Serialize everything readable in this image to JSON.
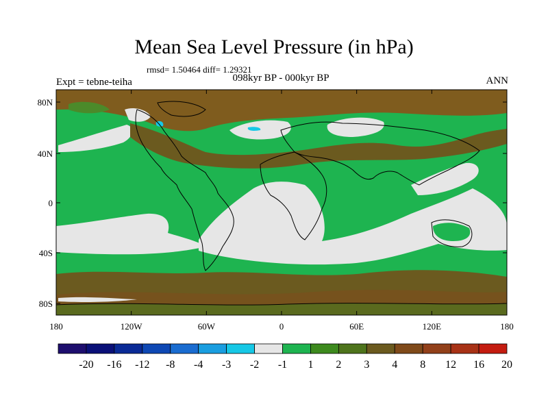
{
  "header": {
    "title": "Mean Sea Level Pressure (in hPa)",
    "stats": "rmsd= 1.50464 diff= 1.29321",
    "subtitle": "098kyr BP - 000kyr BP",
    "left_label": "Expt = tebne-teiha",
    "right_label": "ANN"
  },
  "map": {
    "lon_ticks": [
      "180",
      "120W",
      "60W",
      "0",
      "60E",
      "120E",
      "180"
    ],
    "lat_ticks": [
      "80N",
      "40N",
      "0",
      "40S",
      "80S"
    ],
    "regions": [
      {
        "name": "subtropical-high-south-atlantic-indian",
        "color": "#e6e6e6"
      },
      {
        "name": "subtropical-high-north-atlantic",
        "color": "#e6e6e6"
      },
      {
        "name": "northern-eurasia-positive",
        "color": "#e6e6e6"
      },
      {
        "name": "north-pacific-positive",
        "color": "#e6e6e6"
      },
      {
        "name": "arctic-high",
        "color": "#7f5c1e"
      },
      {
        "name": "north-atlantic-band",
        "color": "#6b5a1f"
      },
      {
        "name": "southern-ocean-band",
        "color": "#6b5a1f"
      }
    ]
  },
  "colorbar": {
    "colors": [
      "#1d0e6e",
      "#0a1078",
      "#0a2a96",
      "#0e48b4",
      "#1a6cd0",
      "#1a9ee0",
      "#16c8e6",
      "#e6e6e6",
      "#1eb450",
      "#3d8a1e",
      "#4e741c",
      "#6b5a1f",
      "#7f4a1a",
      "#92401a",
      "#a83216",
      "#c41c10"
    ],
    "labels": [
      "-20",
      "-16",
      "-12",
      "-8",
      "-4",
      "-3",
      "-2",
      "-1",
      "1",
      "2",
      "3",
      "4",
      "8",
      "12",
      "16",
      "20"
    ]
  }
}
